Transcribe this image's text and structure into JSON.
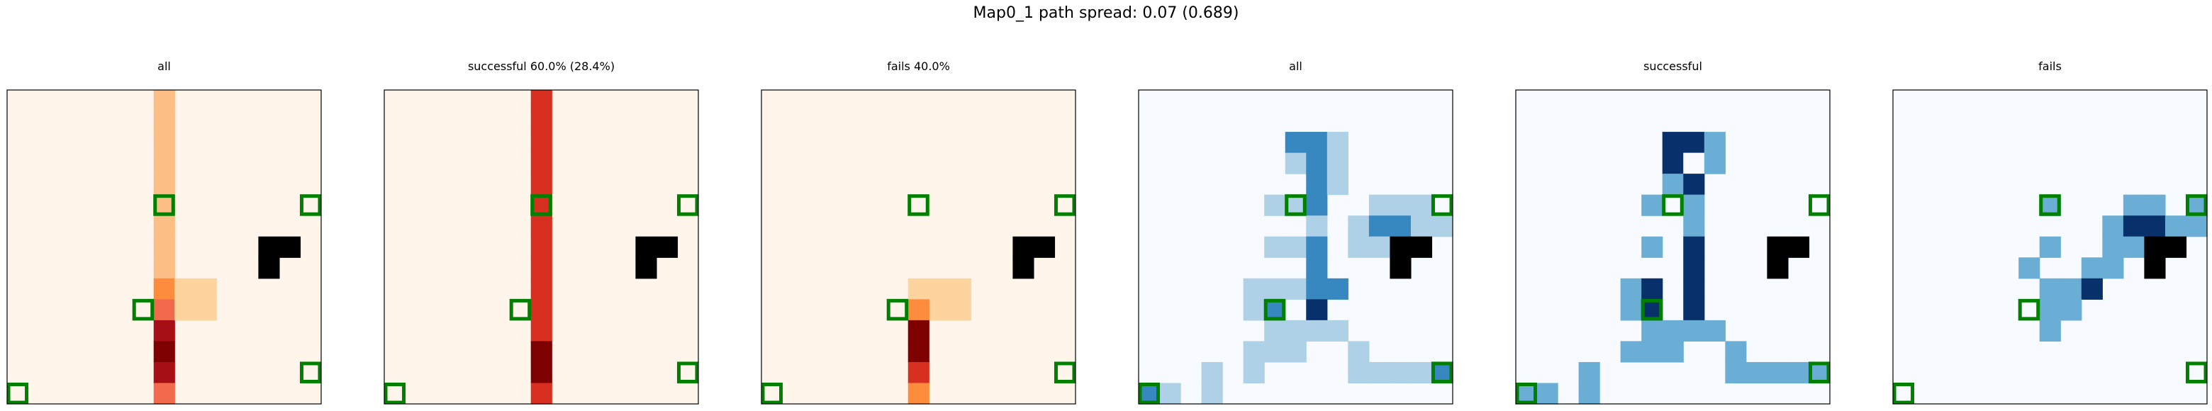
{
  "suptitle": "Map0_1 path spread: 0.07 (0.689)",
  "colors": {
    "oranges_scale": [
      "#fff5eb",
      "#fdd49e",
      "#fdbe85",
      "#fd8d3c",
      "#f16a4c",
      "#d83020",
      "#a50f15",
      "#7f0000"
    ],
    "blues_scale": [
      "#f7fbff",
      "#afd1e7",
      "#6aaed6",
      "#3787c0",
      "#08306b"
    ],
    "obstacle": "#000000",
    "marker": "#008000"
  },
  "chart_data": [
    {
      "type": "heatmap",
      "title": "all",
      "colormap": "Oranges",
      "grid_size": [
        15,
        15
      ],
      "obstacles": [
        [
          12,
          7
        ],
        [
          13,
          7
        ],
        [
          12,
          8
        ]
      ],
      "markers": [
        [
          7,
          5
        ],
        [
          14,
          5
        ],
        [
          6,
          10
        ],
        [
          0,
          14
        ],
        [
          14,
          13
        ]
      ],
      "cells": [
        [
          7,
          0,
          2
        ],
        [
          7,
          1,
          2
        ],
        [
          7,
          2,
          2
        ],
        [
          7,
          3,
          2
        ],
        [
          7,
          4,
          2
        ],
        [
          7,
          5,
          2
        ],
        [
          7,
          6,
          2
        ],
        [
          7,
          7,
          2
        ],
        [
          7,
          8,
          2
        ],
        [
          7,
          9,
          3
        ],
        [
          7,
          10,
          4
        ],
        [
          7,
          11,
          6
        ],
        [
          7,
          12,
          7
        ],
        [
          7,
          13,
          6
        ],
        [
          7,
          14,
          4
        ],
        [
          8,
          9,
          1
        ],
        [
          9,
          9,
          1
        ],
        [
          8,
          10,
          1
        ],
        [
          9,
          10,
          1
        ]
      ]
    },
    {
      "type": "heatmap",
      "title": "successful 60.0% (28.4%)",
      "colormap": "Oranges",
      "grid_size": [
        15,
        15
      ],
      "obstacles": [
        [
          12,
          7
        ],
        [
          13,
          7
        ],
        [
          12,
          8
        ]
      ],
      "markers": [
        [
          7,
          5
        ],
        [
          14,
          5
        ],
        [
          6,
          10
        ],
        [
          0,
          14
        ],
        [
          14,
          13
        ]
      ],
      "cells": [
        [
          7,
          0,
          5
        ],
        [
          7,
          1,
          5
        ],
        [
          7,
          2,
          5
        ],
        [
          7,
          3,
          5
        ],
        [
          7,
          4,
          5
        ],
        [
          7,
          5,
          5
        ],
        [
          7,
          6,
          5
        ],
        [
          7,
          7,
          5
        ],
        [
          7,
          8,
          5
        ],
        [
          7,
          9,
          5
        ],
        [
          7,
          10,
          5
        ],
        [
          7,
          11,
          5
        ],
        [
          7,
          12,
          7
        ],
        [
          7,
          13,
          7
        ],
        [
          7,
          14,
          5
        ]
      ]
    },
    {
      "type": "heatmap",
      "title": "fails 40.0%",
      "colormap": "Oranges",
      "grid_size": [
        15,
        15
      ],
      "obstacles": [
        [
          12,
          7
        ],
        [
          13,
          7
        ],
        [
          12,
          8
        ]
      ],
      "markers": [
        [
          7,
          5
        ],
        [
          14,
          5
        ],
        [
          6,
          10
        ],
        [
          0,
          14
        ],
        [
          14,
          13
        ]
      ],
      "cells": [
        [
          7,
          9,
          1
        ],
        [
          8,
          9,
          1
        ],
        [
          9,
          9,
          1
        ],
        [
          8,
          10,
          1
        ],
        [
          9,
          10,
          1
        ],
        [
          7,
          10,
          3
        ],
        [
          7,
          11,
          7
        ],
        [
          7,
          12,
          7
        ],
        [
          7,
          13,
          5
        ],
        [
          7,
          14,
          3
        ]
      ]
    },
    {
      "type": "heatmap",
      "title": "all",
      "colormap": "Blues",
      "grid_size": [
        15,
        15
      ],
      "obstacles": [
        [
          12,
          7
        ],
        [
          13,
          7
        ],
        [
          12,
          8
        ]
      ],
      "markers": [
        [
          7,
          5
        ],
        [
          14,
          5
        ],
        [
          6,
          10
        ],
        [
          0,
          14
        ],
        [
          14,
          13
        ]
      ],
      "cells": [
        [
          7,
          2,
          3
        ],
        [
          8,
          2,
          3
        ],
        [
          9,
          2,
          1
        ],
        [
          7,
          3,
          1
        ],
        [
          8,
          3,
          3
        ],
        [
          9,
          3,
          1
        ],
        [
          8,
          4,
          3
        ],
        [
          9,
          4,
          1
        ],
        [
          6,
          5,
          1
        ],
        [
          7,
          5,
          1
        ],
        [
          8,
          5,
          3
        ],
        [
          11,
          5,
          1
        ],
        [
          12,
          5,
          1
        ],
        [
          13,
          5,
          1
        ],
        [
          8,
          6,
          1
        ],
        [
          10,
          6,
          1
        ],
        [
          11,
          6,
          3
        ],
        [
          12,
          6,
          3
        ],
        [
          13,
          6,
          1
        ],
        [
          14,
          6,
          1
        ],
        [
          6,
          7,
          1
        ],
        [
          7,
          7,
          1
        ],
        [
          8,
          7,
          3
        ],
        [
          10,
          7,
          1
        ],
        [
          11,
          7,
          1
        ],
        [
          8,
          8,
          3
        ],
        [
          6,
          9,
          1
        ],
        [
          7,
          9,
          1
        ],
        [
          8,
          9,
          3
        ],
        [
          9,
          9,
          3
        ],
        [
          5,
          9,
          1
        ],
        [
          5,
          10,
          1
        ],
        [
          6,
          10,
          3
        ],
        [
          8,
          10,
          4
        ],
        [
          6,
          11,
          1
        ],
        [
          7,
          11,
          1
        ],
        [
          8,
          11,
          1
        ],
        [
          9,
          11,
          1
        ],
        [
          5,
          12,
          1
        ],
        [
          6,
          12,
          1
        ],
        [
          7,
          12,
          1
        ],
        [
          10,
          12,
          1
        ],
        [
          5,
          13,
          1
        ],
        [
          10,
          13,
          1
        ],
        [
          11,
          13,
          1
        ],
        [
          12,
          13,
          1
        ],
        [
          13,
          13,
          1
        ],
        [
          14,
          13,
          3
        ],
        [
          0,
          14,
          3
        ],
        [
          1,
          14,
          1
        ],
        [
          3,
          14,
          1
        ],
        [
          3,
          13,
          1
        ]
      ]
    },
    {
      "type": "heatmap",
      "title": "successful",
      "colormap": "Blues",
      "grid_size": [
        15,
        15
      ],
      "obstacles": [
        [
          12,
          7
        ],
        [
          13,
          7
        ],
        [
          12,
          8
        ]
      ],
      "markers": [
        [
          7,
          5
        ],
        [
          14,
          5
        ],
        [
          6,
          10
        ],
        [
          0,
          14
        ],
        [
          14,
          13
        ]
      ],
      "cells": [
        [
          7,
          2,
          4
        ],
        [
          8,
          2,
          4
        ],
        [
          9,
          2,
          2
        ],
        [
          7,
          3,
          4
        ],
        [
          8,
          3,
          0
        ],
        [
          9,
          3,
          2
        ],
        [
          7,
          4,
          2
        ],
        [
          8,
          4,
          4
        ],
        [
          6,
          5,
          2
        ],
        [
          8,
          5,
          2
        ],
        [
          8,
          6,
          2
        ],
        [
          6,
          7,
          2
        ],
        [
          8,
          7,
          4
        ],
        [
          8,
          8,
          4
        ],
        [
          5,
          9,
          2
        ],
        [
          6,
          9,
          4
        ],
        [
          8,
          9,
          4
        ],
        [
          5,
          10,
          2
        ],
        [
          6,
          10,
          4
        ],
        [
          8,
          10,
          4
        ],
        [
          6,
          11,
          2
        ],
        [
          7,
          11,
          2
        ],
        [
          8,
          11,
          2
        ],
        [
          9,
          11,
          2
        ],
        [
          5,
          12,
          2
        ],
        [
          6,
          12,
          2
        ],
        [
          7,
          12,
          2
        ],
        [
          10,
          12,
          2
        ],
        [
          10,
          13,
          2
        ],
        [
          11,
          13,
          2
        ],
        [
          12,
          13,
          2
        ],
        [
          13,
          13,
          2
        ],
        [
          14,
          13,
          2
        ],
        [
          0,
          14,
          2
        ],
        [
          1,
          14,
          2
        ],
        [
          3,
          14,
          2
        ],
        [
          3,
          13,
          2
        ]
      ]
    },
    {
      "type": "heatmap",
      "title": "fails",
      "colormap": "Blues",
      "grid_size": [
        15,
        15
      ],
      "obstacles": [
        [
          12,
          7
        ],
        [
          13,
          7
        ],
        [
          12,
          8
        ]
      ],
      "markers": [
        [
          7,
          5
        ],
        [
          14,
          5
        ],
        [
          6,
          10
        ],
        [
          0,
          14
        ],
        [
          14,
          13
        ]
      ],
      "cells": [
        [
          7,
          5,
          2
        ],
        [
          11,
          5,
          2
        ],
        [
          12,
          5,
          2
        ],
        [
          14,
          5,
          2
        ],
        [
          10,
          6,
          2
        ],
        [
          11,
          6,
          4
        ],
        [
          12,
          6,
          4
        ],
        [
          13,
          6,
          2
        ],
        [
          14,
          6,
          2
        ],
        [
          7,
          7,
          2
        ],
        [
          10,
          7,
          2
        ],
        [
          11,
          7,
          2
        ],
        [
          6,
          8,
          2
        ],
        [
          9,
          8,
          2
        ],
        [
          10,
          8,
          2
        ],
        [
          7,
          9,
          2
        ],
        [
          8,
          9,
          2
        ],
        [
          9,
          9,
          4
        ],
        [
          7,
          10,
          2
        ],
        [
          8,
          10,
          2
        ],
        [
          7,
          11,
          2
        ]
      ]
    }
  ]
}
